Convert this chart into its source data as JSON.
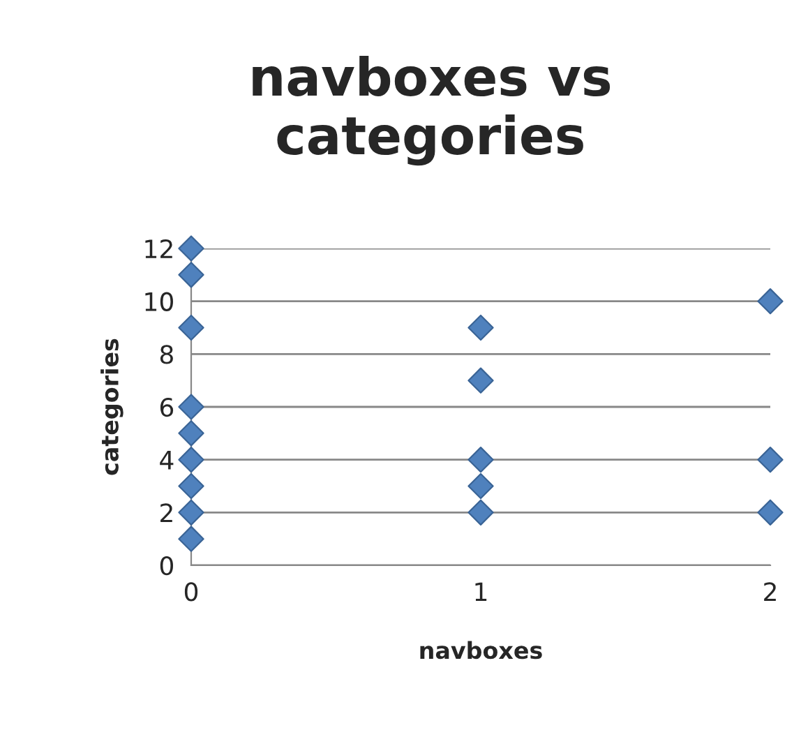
{
  "chart_data": {
    "type": "scatter",
    "title": "navboxes vs categories",
    "xlabel": "navboxes",
    "ylabel": "categories",
    "series": [
      {
        "color": "#4f81bd",
        "x": [
          0,
          0,
          0,
          0,
          0,
          0,
          0,
          0,
          0,
          1,
          1,
          1,
          1,
          1,
          2,
          2,
          2
        ],
        "values": [
          12,
          11,
          9,
          6,
          5,
          4,
          3,
          2,
          1,
          9,
          7,
          4,
          3,
          2,
          10,
          4,
          2
        ]
      }
    ],
    "xlim": [
      0,
      2
    ],
    "xticks": [
      0,
      1,
      2
    ],
    "ylim": [
      0,
      12
    ],
    "yticks": [
      0,
      2,
      4,
      6,
      8,
      10,
      12
    ],
    "grid": "y",
    "marker": "diamond",
    "legend": false
  }
}
